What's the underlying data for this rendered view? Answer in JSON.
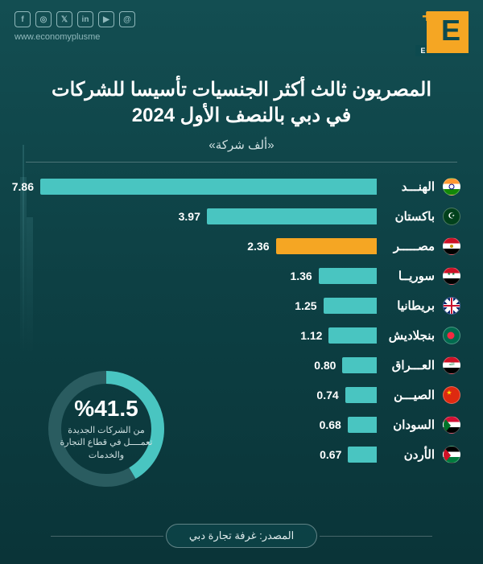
{
  "header": {
    "logo_letter": "E",
    "logo_word": "ECONOMY",
    "website": "www.economyplusme",
    "social": [
      "f",
      "◎",
      "𝕏",
      "in",
      "▶",
      "@"
    ]
  },
  "title": {
    "line1": "المصريون ثالث أكثر الجنسيات تأسيسا للشركات",
    "line2": "في دبي بالنصف الأول 2024",
    "subtitle": "«ألف شركة»"
  },
  "chart": {
    "type": "bar",
    "orientation": "horizontal",
    "max_value": 7.86,
    "bar_default_color": "#49c5c1",
    "bar_highlight_color": "#f5a623",
    "value_fontsize": 14,
    "label_fontsize": 15,
    "track_width_pct": 100,
    "rows": [
      {
        "country": "الهنـــد",
        "value": 7.86,
        "flag": "in",
        "highlight": false
      },
      {
        "country": "باكستان",
        "value": 3.97,
        "flag": "pk",
        "highlight": false
      },
      {
        "country": "مصـــــر",
        "value": 2.36,
        "flag": "eg",
        "highlight": true
      },
      {
        "country": "سوريــا",
        "value": 1.36,
        "flag": "sy",
        "highlight": false
      },
      {
        "country": "بريطانيا",
        "value": 1.25,
        "flag": "gb",
        "highlight": false
      },
      {
        "country": "بنجلاديش",
        "value": 1.12,
        "flag": "bd",
        "highlight": false
      },
      {
        "country": "العـــراق",
        "value": 0.8,
        "flag": "iq",
        "highlight": false
      },
      {
        "country": "الصيـــن",
        "value": 0.74,
        "flag": "cn",
        "highlight": false
      },
      {
        "country": "السودان",
        "value": 0.68,
        "flag": "sd",
        "highlight": false
      },
      {
        "country": "الأردن",
        "value": 0.67,
        "flag": "jo",
        "highlight": false
      }
    ]
  },
  "donut": {
    "percent_label": "%41.5",
    "percent_value": 41.5,
    "text": "من الشركات الجديدة تعمــــل في قطاع التجارة والخدمات",
    "ring_color": "#49c5c1",
    "ring_bg_color": "#2a5c60",
    "stroke_width": 16
  },
  "source": {
    "label": "المصدر: غرفة تجارة دبي"
  },
  "colors": {
    "background_top": "#134e52",
    "background_bottom": "#0a3438",
    "text_primary": "#ffffff",
    "text_muted": "#cfe0e1",
    "accent": "#f5a623"
  }
}
